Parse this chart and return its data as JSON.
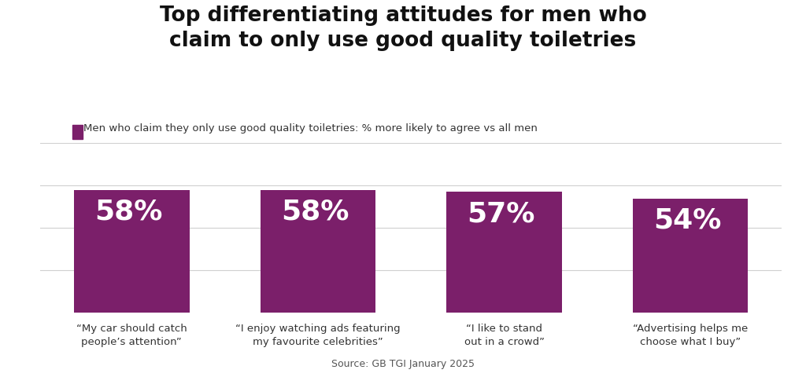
{
  "title": "Top differentiating attitudes for men who\nclaim to only use good quality toiletries",
  "legend_label": "Men who claim they only use good quality toiletries: % more likely to agree vs all men",
  "source": "Source: GB TGI January 2025",
  "categories": [
    "“My car should catch\npeople’s attention”",
    "“I enjoy watching ads featuring\nmy favourite celebrities”",
    "“I like to stand\nout in a crowd”",
    "“Advertising helps me\nchoose what I buy”"
  ],
  "values": [
    58,
    58,
    57,
    54
  ],
  "bar_color": "#7b1f6a",
  "bar_labels": [
    "58%",
    "58%",
    "57%",
    "54%"
  ],
  "background_color": "#ffffff",
  "ylim": [
    0,
    80
  ],
  "grid_color": "#d0d0d0",
  "title_fontsize": 19,
  "legend_fontsize": 9.5,
  "label_fontsize": 26,
  "xlabel_fontsize": 9.5,
  "bar_width": 0.62
}
